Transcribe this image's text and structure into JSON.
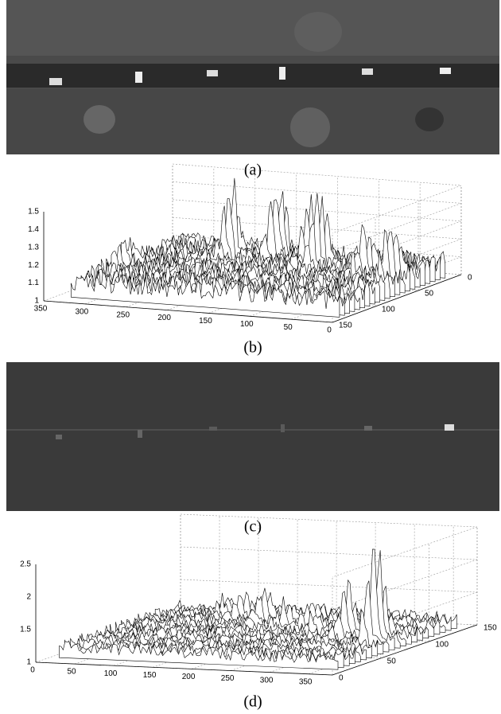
{
  "figure": {
    "panels": [
      {
        "caption": "(a)"
      },
      {
        "caption": "(b)",
        "z_ticks": [
          "1",
          "1.1",
          "1.2",
          "1.3",
          "1.4",
          "1.5"
        ],
        "x_ticks": [
          "350",
          "300",
          "250",
          "200",
          "150",
          "100",
          "50",
          "0"
        ],
        "y_ticks": [
          "0",
          "50",
          "100",
          "150"
        ]
      },
      {
        "caption": "(c)"
      },
      {
        "caption": "(d)",
        "z_ticks": [
          "1",
          "1.5",
          "2",
          "2.5"
        ],
        "x_ticks": [
          "0",
          "50",
          "100",
          "150",
          "200",
          "250",
          "300",
          "350"
        ],
        "y_ticks": [
          "0",
          "50",
          "100",
          "150"
        ]
      }
    ]
  }
}
